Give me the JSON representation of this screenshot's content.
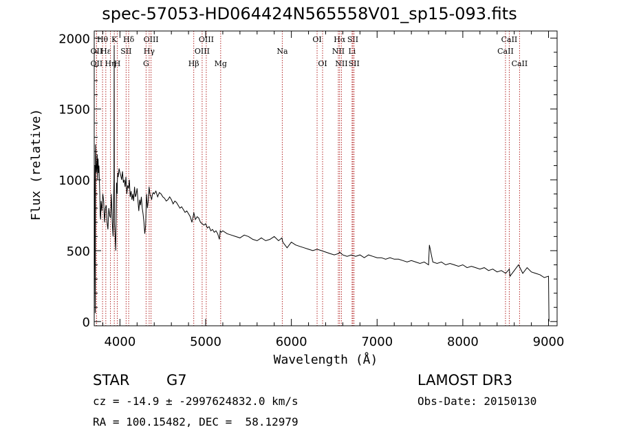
{
  "chart_data": {
    "type": "line",
    "title": "spec-57053-HD064424N565558V01_sp15-093.fits",
    "xlabel": "Wavelength (Å)",
    "ylabel": "Flux (relative)",
    "xlim": [
      3700,
      9100
    ],
    "ylim": [
      -30,
      2050
    ],
    "x_ticks": [
      4000,
      5000,
      6000,
      7000,
      8000,
      9000
    ],
    "y_ticks": [
      0,
      500,
      1000,
      1500,
      2000
    ],
    "series": [
      {
        "name": "flux",
        "x": [
          3700,
          3705,
          3710,
          3712,
          3715,
          3720,
          3725,
          3730,
          3735,
          3740,
          3745,
          3750,
          3755,
          3760,
          3765,
          3770,
          3775,
          3780,
          3790,
          3800,
          3810,
          3820,
          3830,
          3840,
          3850,
          3860,
          3870,
          3880,
          3890,
          3900,
          3910,
          3920,
          3930,
          3933,
          3935,
          3940,
          3950,
          3960,
          3968,
          3970,
          3975,
          3980,
          3990,
          4000,
          4010,
          4020,
          4030,
          4040,
          4050,
          4060,
          4070,
          4080,
          4090,
          4100,
          4110,
          4120,
          4130,
          4140,
          4150,
          4160,
          4170,
          4180,
          4190,
          4200,
          4210,
          4220,
          4230,
          4240,
          4250,
          4260,
          4270,
          4280,
          4290,
          4300,
          4310,
          4320,
          4330,
          4340,
          4350,
          4360,
          4370,
          4380,
          4390,
          4400,
          4420,
          4440,
          4460,
          4480,
          4500,
          4520,
          4540,
          4560,
          4580,
          4600,
          4620,
          4640,
          4660,
          4680,
          4700,
          4720,
          4740,
          4760,
          4780,
          4800,
          4820,
          4840,
          4860,
          4861,
          4880,
          4900,
          4920,
          4940,
          4960,
          4980,
          5000,
          5020,
          5040,
          5060,
          5080,
          5100,
          5120,
          5140,
          5160,
          5170,
          5180,
          5200,
          5250,
          5300,
          5350,
          5400,
          5450,
          5500,
          5550,
          5600,
          5650,
          5700,
          5750,
          5800,
          5850,
          5890,
          5900,
          5950,
          6000,
          6050,
          6100,
          6150,
          6200,
          6250,
          6300,
          6350,
          6400,
          6450,
          6500,
          6550,
          6563,
          6600,
          6650,
          6700,
          6750,
          6800,
          6850,
          6900,
          6950,
          7000,
          7050,
          7100,
          7150,
          7200,
          7250,
          7300,
          7350,
          7400,
          7450,
          7500,
          7550,
          7600,
          7610,
          7650,
          7700,
          7750,
          7800,
          7850,
          7900,
          7950,
          8000,
          8050,
          8100,
          8150,
          8200,
          8250,
          8300,
          8350,
          8400,
          8450,
          8500,
          8542,
          8550,
          8600,
          8650,
          8700,
          8750,
          8800,
          8850,
          8900,
          8950,
          9000,
          9005
        ],
        "values": [
          20,
          600,
          1100,
          60,
          1250,
          1150,
          1050,
          1080,
          1180,
          1000,
          1150,
          1050,
          1100,
          1000,
          900,
          750,
          720,
          850,
          780,
          900,
          850,
          700,
          800,
          820,
          700,
          650,
          800,
          750,
          730,
          900,
          700,
          600,
          1000,
          1950,
          700,
          650,
          500,
          980,
          900,
          1000,
          1050,
          1020,
          1080,
          1050,
          1030,
          1000,
          1060,
          980,
          1000,
          950,
          1020,
          900,
          960,
          940,
          1000,
          880,
          920,
          860,
          900,
          850,
          950,
          880,
          900,
          940,
          850,
          780,
          860,
          820,
          880,
          800,
          760,
          700,
          620,
          680,
          900,
          800,
          850,
          950,
          900,
          880,
          860,
          900,
          910,
          900,
          920,
          880,
          910,
          900,
          880,
          870,
          850,
          860,
          880,
          860,
          830,
          850,
          840,
          820,
          800,
          810,
          790,
          770,
          780,
          760,
          740,
          700,
          760,
          770,
          720,
          740,
          730,
          700,
          690,
          680,
          690,
          660,
          670,
          640,
          650,
          630,
          640,
          620,
          580,
          640,
          630,
          640,
          620,
          610,
          600,
          590,
          610,
          600,
          580,
          570,
          590,
          570,
          580,
          600,
          570,
          590,
          560,
          520,
          560,
          540,
          530,
          520,
          510,
          500,
          510,
          500,
          490,
          480,
          470,
          480,
          490,
          470,
          460,
          470,
          460,
          470,
          450,
          470,
          460,
          450,
          450,
          440,
          450,
          440,
          440,
          430,
          420,
          430,
          420,
          410,
          420,
          400,
          540,
          420,
          410,
          420,
          400,
          410,
          400,
          390,
          400,
          380,
          390,
          380,
          370,
          380,
          360,
          370,
          350,
          360,
          340,
          370,
          320,
          360,
          400,
          340,
          380,
          350,
          340,
          330,
          310,
          320,
          0
        ]
      }
    ],
    "lines": [
      {
        "name": "OII",
        "wavelength": 3727,
        "row": 3
      },
      {
        "name": "Hθ",
        "wavelength": 3797,
        "row": 1
      },
      {
        "name": "OII",
        "wavelength": 3727,
        "row": 2
      },
      {
        "name": "Hε",
        "wavelength": 3835,
        "row": 2
      },
      {
        "name": "Hη",
        "wavelength": 3889,
        "row": 3
      },
      {
        "name": "K",
        "wavelength": 3934,
        "row": 1
      },
      {
        "name": "H",
        "wavelength": 3969,
        "row": 3
      },
      {
        "name": "SII",
        "wavelength": 4072,
        "row": 2
      },
      {
        "name": "Hδ",
        "wavelength": 4102,
        "row": 1
      },
      {
        "name": "OIII",
        "wavelength": 4363,
        "row": 1
      },
      {
        "name": "Hγ",
        "wavelength": 4341,
        "row": 2
      },
      {
        "name": "G",
        "wavelength": 4305,
        "row": 3
      },
      {
        "name": "Hβ",
        "wavelength": 4861,
        "row": 3
      },
      {
        "name": "OIII",
        "wavelength": 5007,
        "row": 1
      },
      {
        "name": "OIII",
        "wavelength": 4959,
        "row": 2
      },
      {
        "name": "Mg",
        "wavelength": 5175,
        "row": 3
      },
      {
        "name": "Na",
        "wavelength": 5894,
        "row": 2
      },
      {
        "name": "OI",
        "wavelength": 6300,
        "row": 1
      },
      {
        "name": "OI",
        "wavelength": 6364,
        "row": 3
      },
      {
        "name": "Hα",
        "wavelength": 6563,
        "row": 1
      },
      {
        "name": "NII",
        "wavelength": 6548,
        "row": 2
      },
      {
        "name": "NII",
        "wavelength": 6584,
        "row": 3
      },
      {
        "name": "SII",
        "wavelength": 6717,
        "row": 1
      },
      {
        "name": "Li",
        "wavelength": 6708,
        "row": 2
      },
      {
        "name": "SII",
        "wavelength": 6731,
        "row": 3
      },
      {
        "name": "CaII",
        "wavelength": 8542,
        "row": 1
      },
      {
        "name": "CaII",
        "wavelength": 8498,
        "row": 2
      },
      {
        "name": "CaII",
        "wavelength": 8662,
        "row": 3
      }
    ]
  },
  "info": {
    "object_class": "STAR",
    "subclass": "G7",
    "survey": "LAMOST DR3",
    "cz_line": "cz = -14.9 ± -2997624832.0 km/s",
    "obs_date_line": "Obs-Date: 20150130",
    "radec_line": "RA = 100.15482, DEC =  58.12979"
  }
}
